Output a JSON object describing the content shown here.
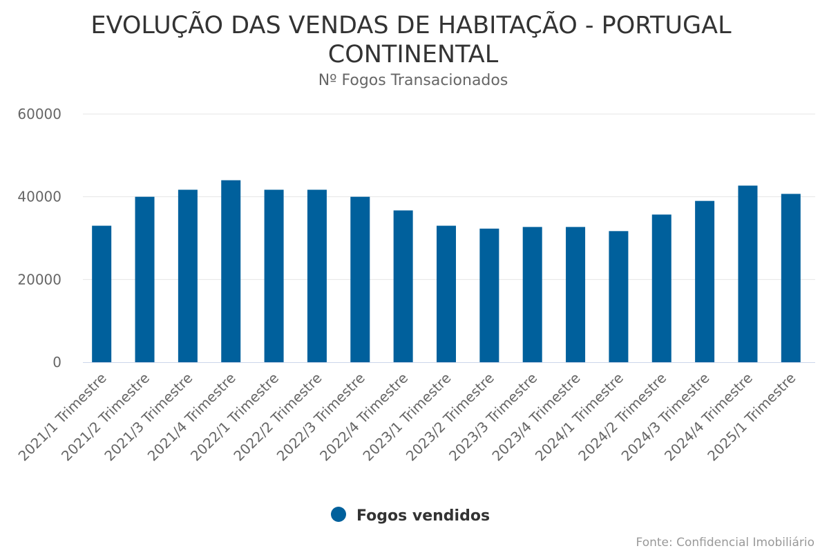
{
  "chart_data": {
    "type": "bar",
    "title_lines": [
      "EVOLUÇÃO DAS VENDAS DE HABITAÇÃO - PORTUGAL",
      "CONTINENTAL"
    ],
    "subtitle": "Nº Fogos Transacionados",
    "xlabel": "",
    "ylabel": "",
    "ylim": [
      0,
      60000
    ],
    "yticks": [
      0,
      20000,
      40000,
      60000
    ],
    "grid": true,
    "legend_position": "bottom",
    "categories": [
      "2021/1 Trimestre",
      "2021/2 Trimestre",
      "2021/3 Trimestre",
      "2021/4 Trimestre",
      "2022/1 Trimestre",
      "2022/2 Trimestre",
      "2022/3 Trimestre",
      "2022/4 Trimestre",
      "2023/1 Trimestre",
      "2023/2 Trimestre",
      "2023/3 Trimestre",
      "2023/4 Trimestre",
      "2024/1 Trimestre",
      "2024/2 Trimestre",
      "2024/3 Trimestre",
      "2024/4 Trimestre",
      "2025/1 Trimestre"
    ],
    "series": [
      {
        "name": "Fogos vendidos",
        "color": "#00609c",
        "values": [
          33000,
          40000,
          41700,
          44000,
          41700,
          41700,
          40000,
          36700,
          33000,
          32300,
          32700,
          32700,
          31700,
          35700,
          39000,
          42700,
          40700
        ]
      }
    ],
    "credit": "Fonte: Confidencial Imobiliário"
  },
  "colors": {
    "bar": "#00609c",
    "grid": "#e6e6e6",
    "axis_line": "#ccd6eb"
  }
}
